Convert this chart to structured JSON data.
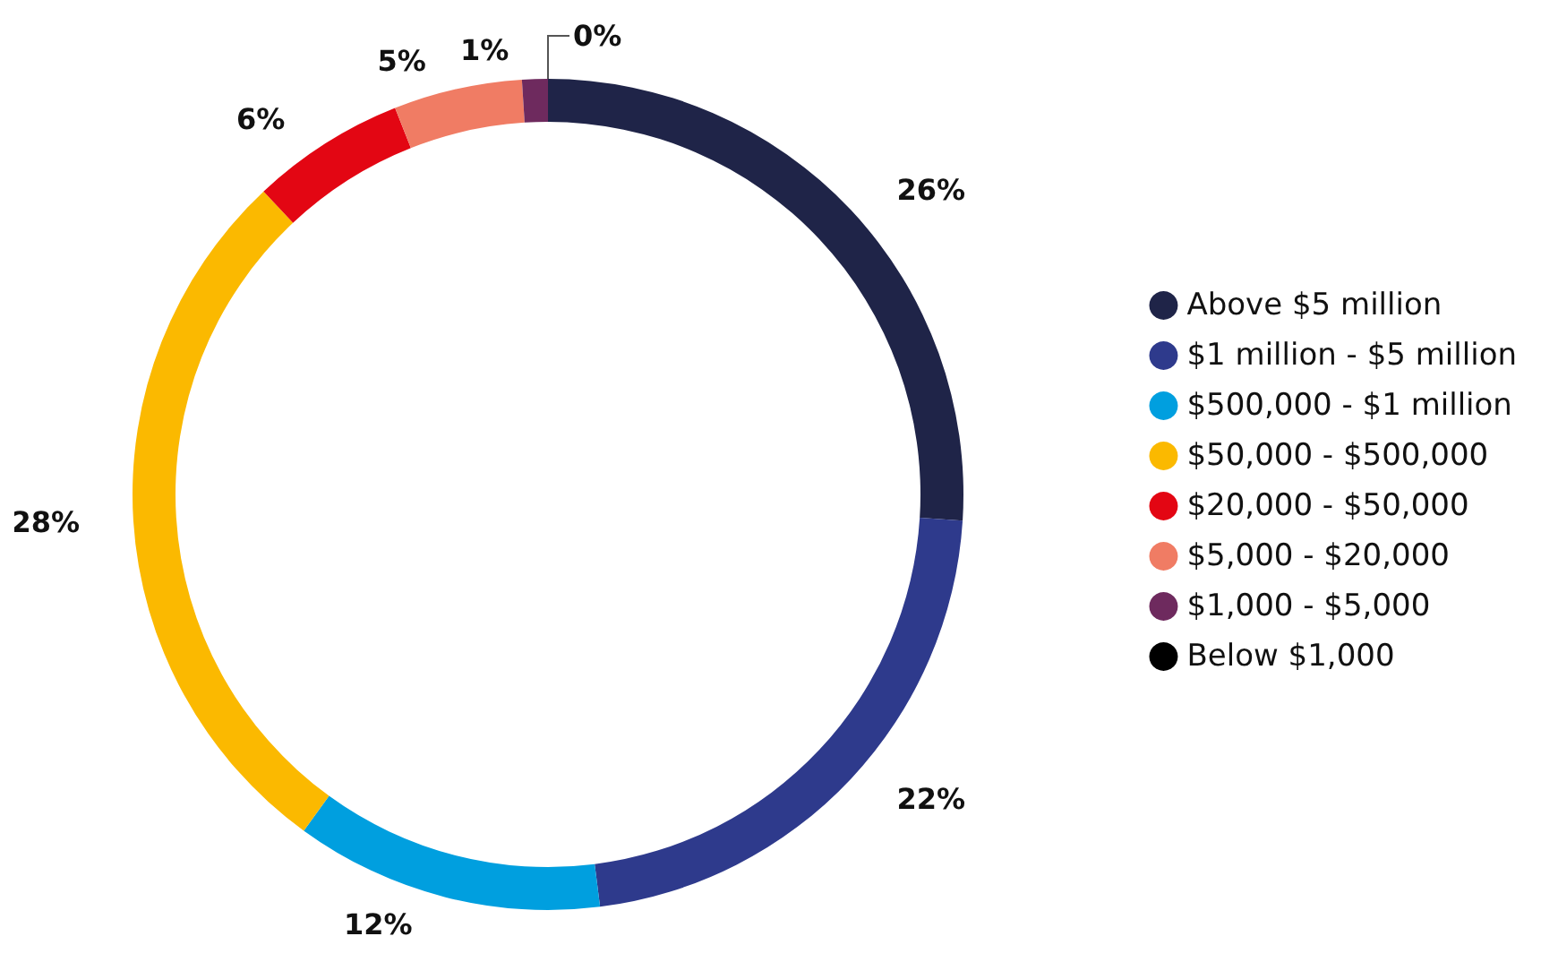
{
  "chart_data": {
    "type": "donut",
    "categories": [
      "Above $5 million",
      "$1 million - $5 million",
      "$500,000 - $1 million",
      "$50,000 - $500,000",
      "$20,000 - $50,000",
      "$5,000 - $20,000",
      "$1,000 - $5,000",
      "Below $1,000"
    ],
    "values": [
      26,
      22,
      12,
      28,
      6,
      5,
      1,
      0
    ],
    "value_labels": [
      "26%",
      "22%",
      "12%",
      "28%",
      "6%",
      "5%",
      "1%",
      "0%"
    ],
    "colors": [
      "#1f2448",
      "#2e3a8c",
      "#009fdf",
      "#fbb900",
      "#e30613",
      "#f07c64",
      "#6e2a5e",
      "#000000"
    ],
    "legend": "right"
  }
}
